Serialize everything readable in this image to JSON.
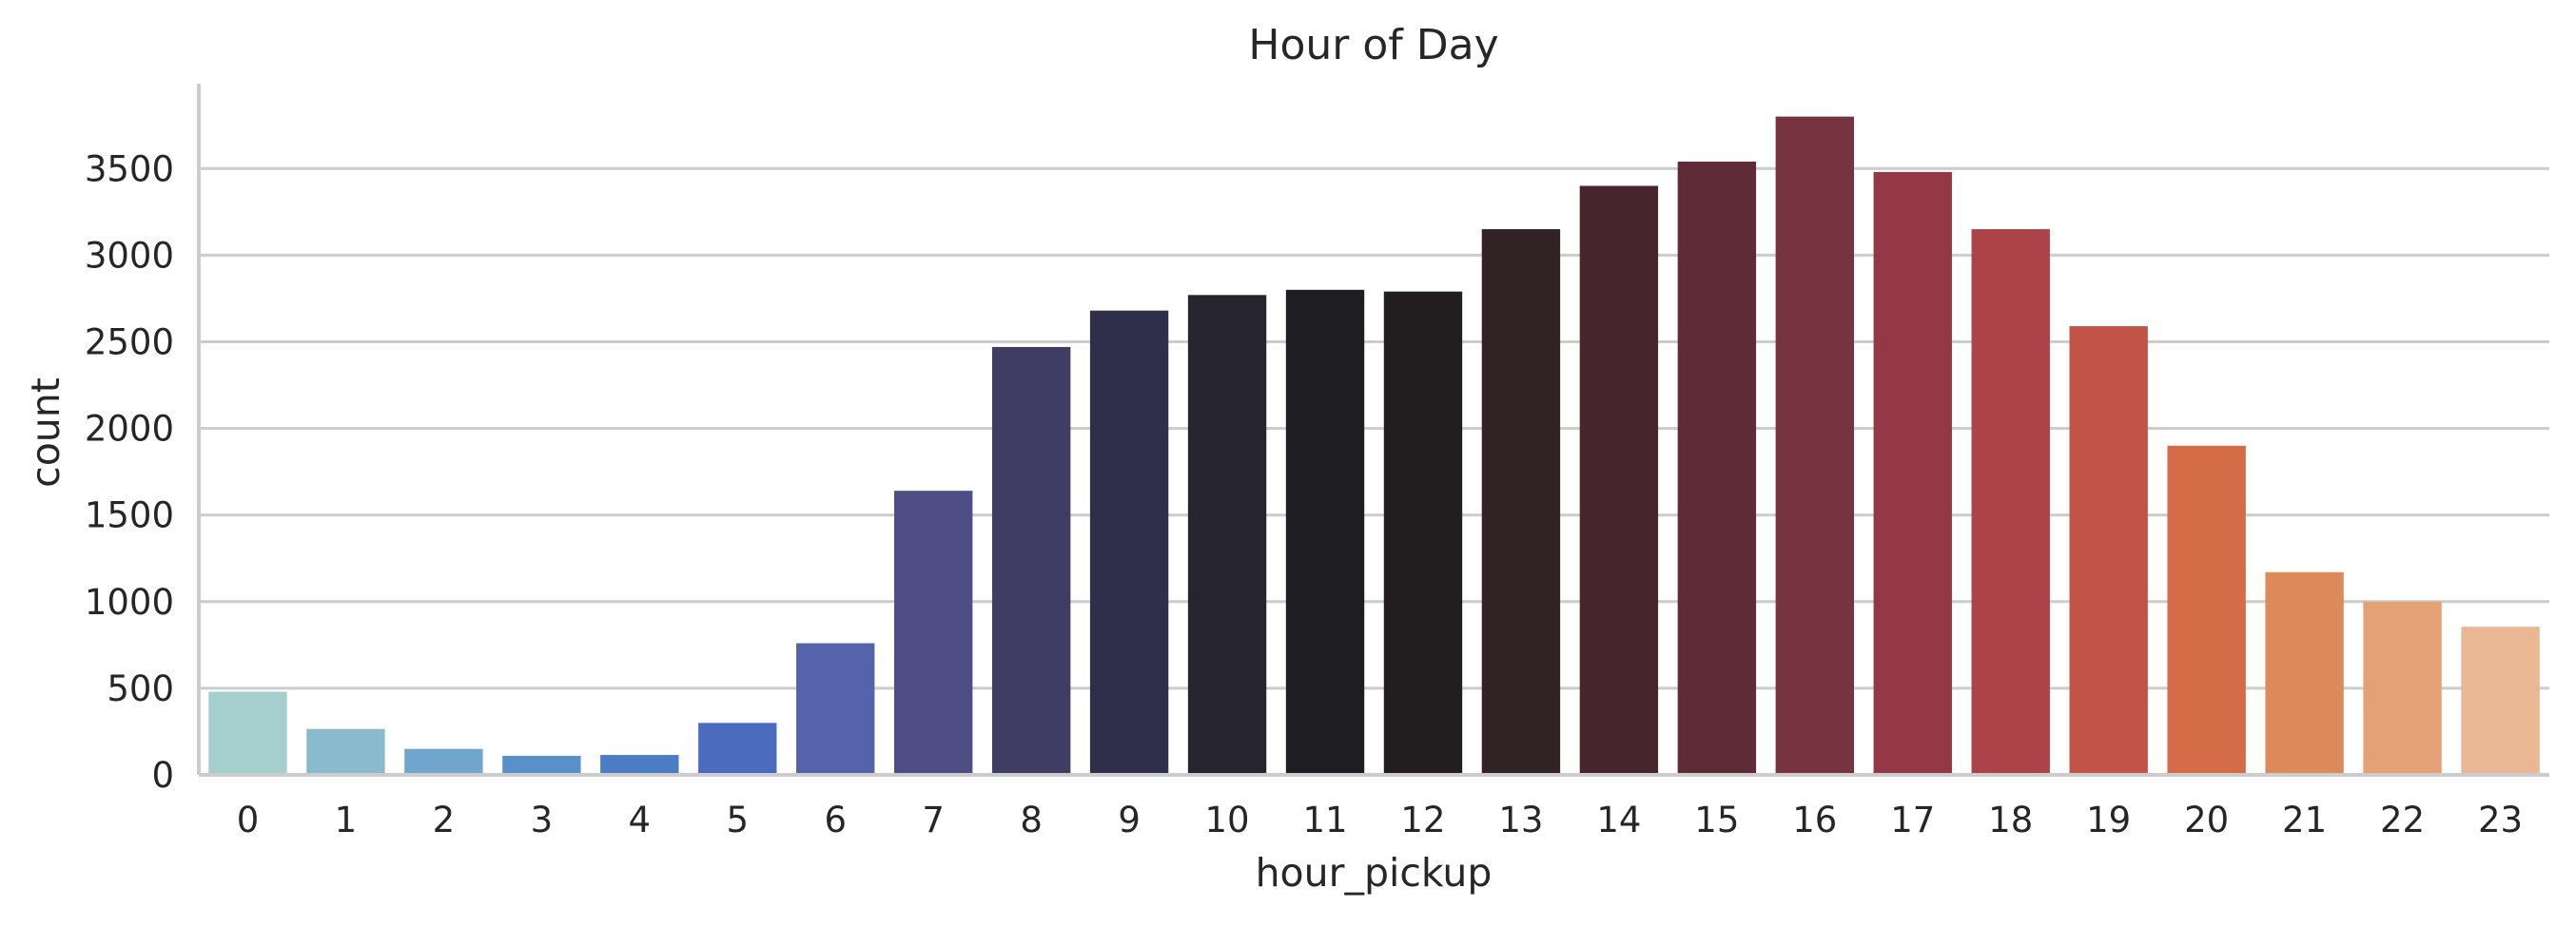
{
  "chart_data": {
    "type": "bar",
    "title": "Hour of Day",
    "xlabel": "hour_pickup",
    "ylabel": "count",
    "categories": [
      "0",
      "1",
      "2",
      "3",
      "4",
      "5",
      "6",
      "7",
      "8",
      "9",
      "10",
      "11",
      "12",
      "13",
      "14",
      "15",
      "16",
      "17",
      "18",
      "19",
      "20",
      "21",
      "22",
      "23"
    ],
    "values": [
      480,
      265,
      150,
      110,
      115,
      300,
      760,
      1640,
      2470,
      2680,
      2770,
      2800,
      2790,
      3150,
      3400,
      3540,
      3800,
      3480,
      3150,
      2590,
      1900,
      1170,
      1000,
      855
    ],
    "ylim": [
      0,
      3990
    ],
    "yticks": [
      0,
      500,
      1000,
      1500,
      2000,
      2500,
      3000,
      3500
    ],
    "grid": "horizontal",
    "colors": [
      "#a5cfcf",
      "#8abbcd",
      "#70a6cb",
      "#5891c9",
      "#4b7cc4",
      "#4b6bbe",
      "#5563aa",
      "#4e4d86",
      "#3f3d63",
      "#302f4b",
      "#26252f",
      "#1e1e22",
      "#221e1f",
      "#312226",
      "#47272d",
      "#5f2b36",
      "#77333f",
      "#943846",
      "#ac4349",
      "#c15447",
      "#d36c47",
      "#dd8a5b",
      "#e4a176",
      "#e9b793"
    ]
  }
}
